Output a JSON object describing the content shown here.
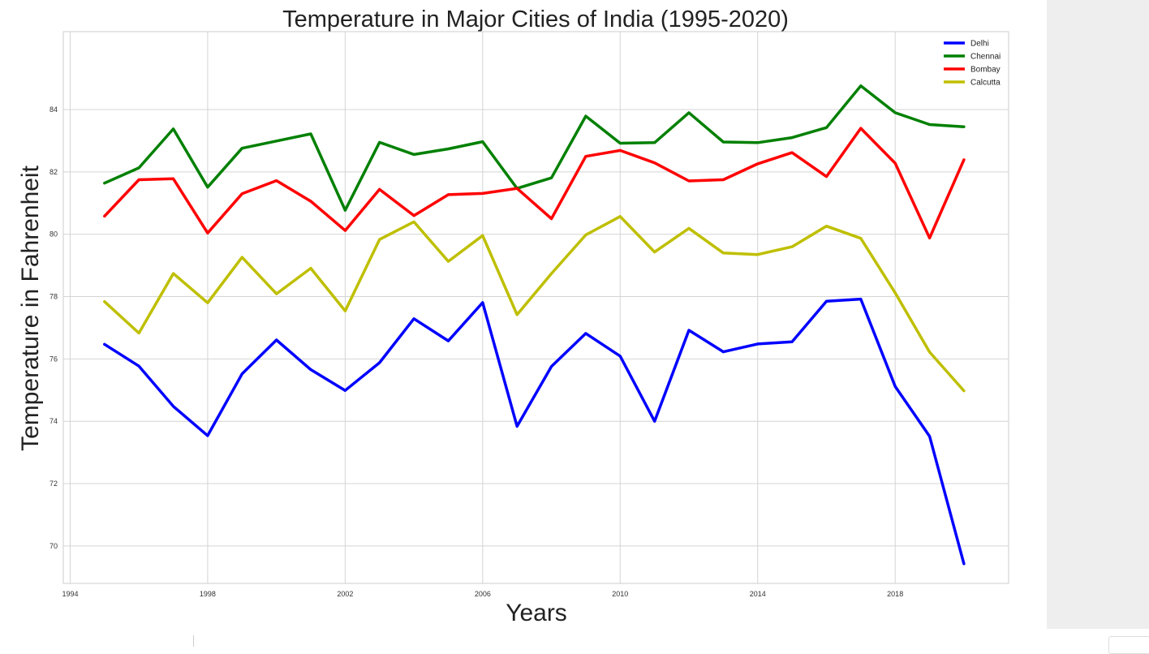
{
  "chart_data": {
    "type": "line",
    "title": "Temperature in Major Cities of India (1995-2020)",
    "xlabel": "Years",
    "ylabel": "Temperature in Fahrenheit",
    "xlim": [
      1993.8,
      2021.3
    ],
    "ylim": [
      68.8,
      86.5
    ],
    "xticks": [
      1994,
      1998,
      2002,
      2006,
      2010,
      2014,
      2018
    ],
    "yticks": [
      70,
      72,
      74,
      76,
      78,
      80,
      82,
      84
    ],
    "grid": true,
    "legend_position": "top-right",
    "x": [
      1995,
      1996,
      1997,
      1998,
      1999,
      2000,
      2001,
      2002,
      2003,
      2004,
      2005,
      2006,
      2007,
      2008,
      2009,
      2010,
      2011,
      2012,
      2013,
      2014,
      2015,
      2016,
      2017,
      2018,
      2019,
      2020
    ],
    "series": [
      {
        "name": "Delhi",
        "color": "#0000ff",
        "values": [
          76.47,
          75.77,
          74.48,
          73.54,
          75.52,
          76.61,
          75.66,
          74.99,
          75.88,
          77.29,
          76.58,
          77.81,
          73.84,
          75.76,
          76.82,
          76.09,
          74.0,
          76.92,
          76.23,
          76.48,
          76.55,
          77.85,
          77.92,
          75.12,
          73.52,
          69.43
        ]
      },
      {
        "name": "Chennai",
        "color": "#008000",
        "values": [
          81.64,
          82.13,
          83.38,
          81.51,
          82.76,
          82.99,
          83.22,
          80.77,
          82.95,
          82.56,
          82.74,
          82.97,
          81.47,
          81.81,
          83.79,
          82.92,
          82.94,
          83.9,
          82.96,
          82.94,
          83.1,
          83.42,
          84.76,
          83.9,
          83.52,
          83.45
        ]
      },
      {
        "name": "Bombay",
        "color": "#ff0000",
        "values": [
          80.58,
          81.75,
          81.78,
          80.04,
          81.3,
          81.72,
          81.06,
          80.12,
          81.44,
          80.6,
          81.27,
          81.31,
          81.47,
          80.5,
          82.5,
          82.69,
          82.29,
          81.71,
          81.75,
          82.26,
          82.62,
          81.85,
          83.4,
          82.28,
          79.88,
          82.39
        ]
      },
      {
        "name": "Calcutta",
        "color": "#bfbf00",
        "values": [
          77.84,
          76.83,
          78.74,
          77.8,
          79.26,
          78.09,
          78.91,
          77.54,
          79.83,
          80.4,
          79.13,
          79.96,
          77.42,
          78.74,
          79.98,
          80.57,
          79.43,
          80.19,
          79.4,
          79.35,
          79.6,
          80.26,
          79.87,
          78.12,
          76.22,
          74.98
        ]
      }
    ]
  }
}
